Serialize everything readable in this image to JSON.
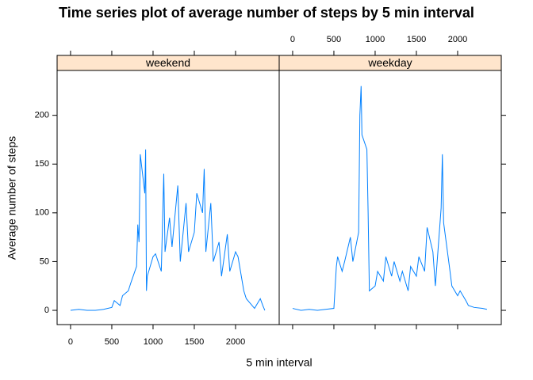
{
  "chart_data": {
    "type": "line",
    "title": "Time series plot of average number of steps by 5 min interval",
    "x_label": "5 min interval",
    "y_label": "Average number of steps",
    "xlim": [
      -163,
      2529
    ],
    "ylim": [
      -14.6,
      246
    ],
    "xticks": [
      0,
      500,
      1000,
      1500,
      2000
    ],
    "yticks": [
      0,
      50,
      100,
      150,
      200
    ],
    "color": "#0080ff",
    "strip_color": "#ffe5cc",
    "series": [
      {
        "name": "weekend",
        "x": [
          0,
          100,
          200,
          300,
          400,
          500,
          530,
          600,
          630,
          700,
          730,
          800,
          815,
          830,
          845,
          900,
          910,
          920,
          930,
          1000,
          1030,
          1100,
          1130,
          1145,
          1200,
          1230,
          1300,
          1330,
          1400,
          1430,
          1500,
          1530,
          1600,
          1620,
          1640,
          1700,
          1730,
          1800,
          1830,
          1900,
          1930,
          2000,
          2030,
          2100,
          2130,
          2200,
          2230,
          2300,
          2330,
          2355
        ],
        "values": [
          0,
          1,
          0,
          0,
          1,
          3,
          10,
          5,
          15,
          20,
          28,
          45,
          88,
          70,
          160,
          120,
          165,
          20,
          35,
          55,
          58,
          40,
          140,
          60,
          95,
          65,
          128,
          50,
          110,
          60,
          80,
          120,
          100,
          145,
          60,
          110,
          50,
          70,
          35,
          78,
          40,
          60,
          55,
          20,
          12,
          5,
          2,
          12,
          5,
          0
        ]
      },
      {
        "name": "weekday",
        "x": [
          0,
          100,
          200,
          300,
          400,
          500,
          530,
          545,
          600,
          630,
          700,
          730,
          800,
          815,
          830,
          840,
          900,
          915,
          930,
          1000,
          1030,
          1100,
          1130,
          1200,
          1230,
          1300,
          1330,
          1400,
          1430,
          1500,
          1530,
          1600,
          1630,
          1700,
          1730,
          1800,
          1815,
          1830,
          1900,
          1930,
          2000,
          2030,
          2100,
          2130,
          2200,
          2300,
          2355
        ],
        "values": [
          2,
          0,
          1,
          0,
          1,
          2,
          45,
          55,
          40,
          50,
          75,
          50,
          80,
          200,
          230,
          180,
          165,
          100,
          20,
          25,
          40,
          30,
          55,
          35,
          50,
          30,
          40,
          20,
          45,
          35,
          55,
          40,
          85,
          60,
          25,
          105,
          160,
          90,
          45,
          25,
          15,
          20,
          10,
          5,
          3,
          2,
          1
        ]
      }
    ]
  }
}
